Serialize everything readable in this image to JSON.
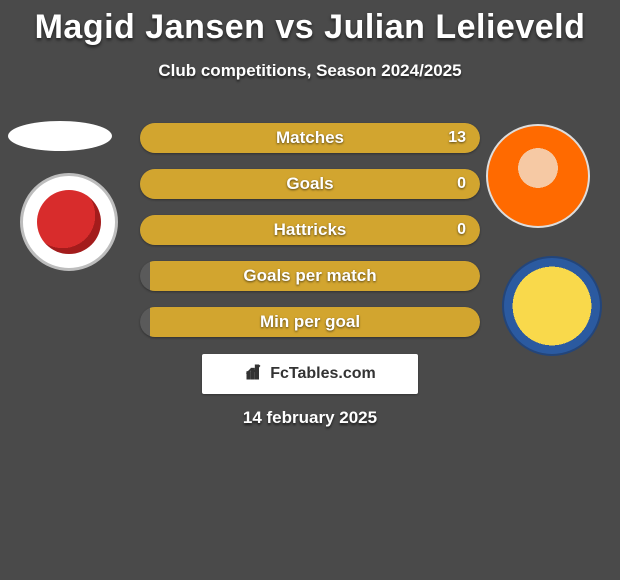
{
  "colors": {
    "background": "#4a4a4a",
    "text": "#ffffff",
    "bar_primary": "#d2a52f",
    "bar_secondary": "#5a5a5a",
    "brand_bg": "#ffffff",
    "brand_text": "#333333"
  },
  "typography": {
    "title_fontsize": 34,
    "title_weight": 800,
    "subtitle_fontsize": 17,
    "subtitle_weight": 600,
    "stat_label_fontsize": 17,
    "stat_label_weight": 700,
    "stat_value_fontsize": 16,
    "date_fontsize": 17
  },
  "header": {
    "player1": "Magid Jansen",
    "vs": "vs",
    "player2": "Julian Lelieveld",
    "subtitle": "Club competitions, Season 2024/2025"
  },
  "stats": {
    "bar_radius": 15,
    "rows": [
      {
        "label": "Matches",
        "left": "",
        "right": "13",
        "left_pct": 0,
        "right_pct": 100
      },
      {
        "label": "Goals",
        "left": "",
        "right": "0",
        "left_pct": 0,
        "right_pct": 100
      },
      {
        "label": "Hattricks",
        "left": "",
        "right": "0",
        "left_pct": 0,
        "right_pct": 100
      },
      {
        "label": "Goals per match",
        "left": "",
        "right": "",
        "left_pct": 0,
        "right_pct": 97
      },
      {
        "label": "Min per goal",
        "left": "",
        "right": "",
        "left_pct": 0,
        "right_pct": 97
      }
    ]
  },
  "brand": {
    "text": "FcTables.com"
  },
  "date": "14 february 2025",
  "icons": {
    "chart": "chart-icon"
  }
}
